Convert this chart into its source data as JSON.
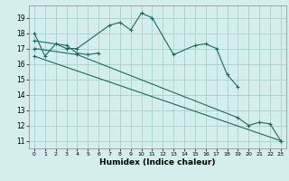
{
  "xlabel": "Humidex (Indice chaleur)",
  "xlim": [
    -0.5,
    23.5
  ],
  "ylim": [
    10.5,
    19.8
  ],
  "yticks": [
    11,
    12,
    13,
    14,
    15,
    16,
    17,
    18,
    19
  ],
  "xticks": [
    0,
    1,
    2,
    3,
    4,
    5,
    6,
    7,
    8,
    9,
    10,
    11,
    12,
    13,
    14,
    15,
    16,
    17,
    18,
    19,
    20,
    21,
    22,
    23
  ],
  "bg_color": "#d4eded",
  "grid_color": "#aacece",
  "line_color": "#1a6b5e",
  "curve1_x": [
    0,
    1,
    2,
    3,
    4,
    7,
    8,
    9,
    10,
    11,
    13,
    15,
    16,
    17,
    18,
    19
  ],
  "curve1_y": [
    18.0,
    16.5,
    17.3,
    17.0,
    17.0,
    18.5,
    18.7,
    18.2,
    19.3,
    19.0,
    16.6,
    17.2,
    17.3,
    17.0,
    15.3,
    14.5
  ],
  "curve2_x": [
    0,
    3,
    4,
    5,
    6
  ],
  "curve2_y": [
    17.5,
    17.2,
    16.7,
    16.6,
    16.7
  ],
  "curve3_x": [
    0,
    4,
    19,
    20,
    21,
    22,
    23
  ],
  "curve3_y": [
    17.0,
    16.6,
    12.5,
    12.0,
    12.2,
    12.1,
    11.0
  ],
  "curve4_x": [
    0,
    23
  ],
  "curve4_y": [
    16.5,
    11.0
  ]
}
